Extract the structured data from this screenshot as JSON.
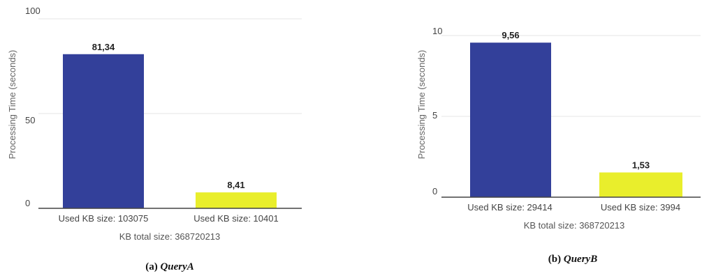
{
  "chart_data": [
    {
      "type": "bar",
      "ylabel": "Processing Time (seconds)",
      "ylim": [
        0,
        100
      ],
      "yticks": [
        "0",
        "50",
        "100"
      ],
      "categories": [
        "Used KB size: 103075",
        "Used KB size: 10401"
      ],
      "values": [
        81.34,
        8.41
      ],
      "data_labels": [
        "81,34",
        "8,41"
      ],
      "colors": [
        "#33409a",
        "#e9ee2c"
      ],
      "xlabel": "KB total size: 368720213",
      "caption_prefix": "(a) ",
      "caption_name": "QueryA",
      "grid": true
    },
    {
      "type": "bar",
      "ylabel": "Processing Time (seconds)",
      "ylim": [
        0,
        10
      ],
      "yticks": [
        "0",
        "5",
        "10"
      ],
      "categories": [
        "Used KB size: 29414",
        "Used KB size: 3994"
      ],
      "values": [
        9.56,
        1.53
      ],
      "data_labels": [
        "9,56",
        "1,53"
      ],
      "colors": [
        "#33409a",
        "#e9ee2c"
      ],
      "xlabel": "KB total size: 368720213",
      "caption_prefix": "(b) ",
      "caption_name": "QueryB",
      "grid": true
    }
  ]
}
